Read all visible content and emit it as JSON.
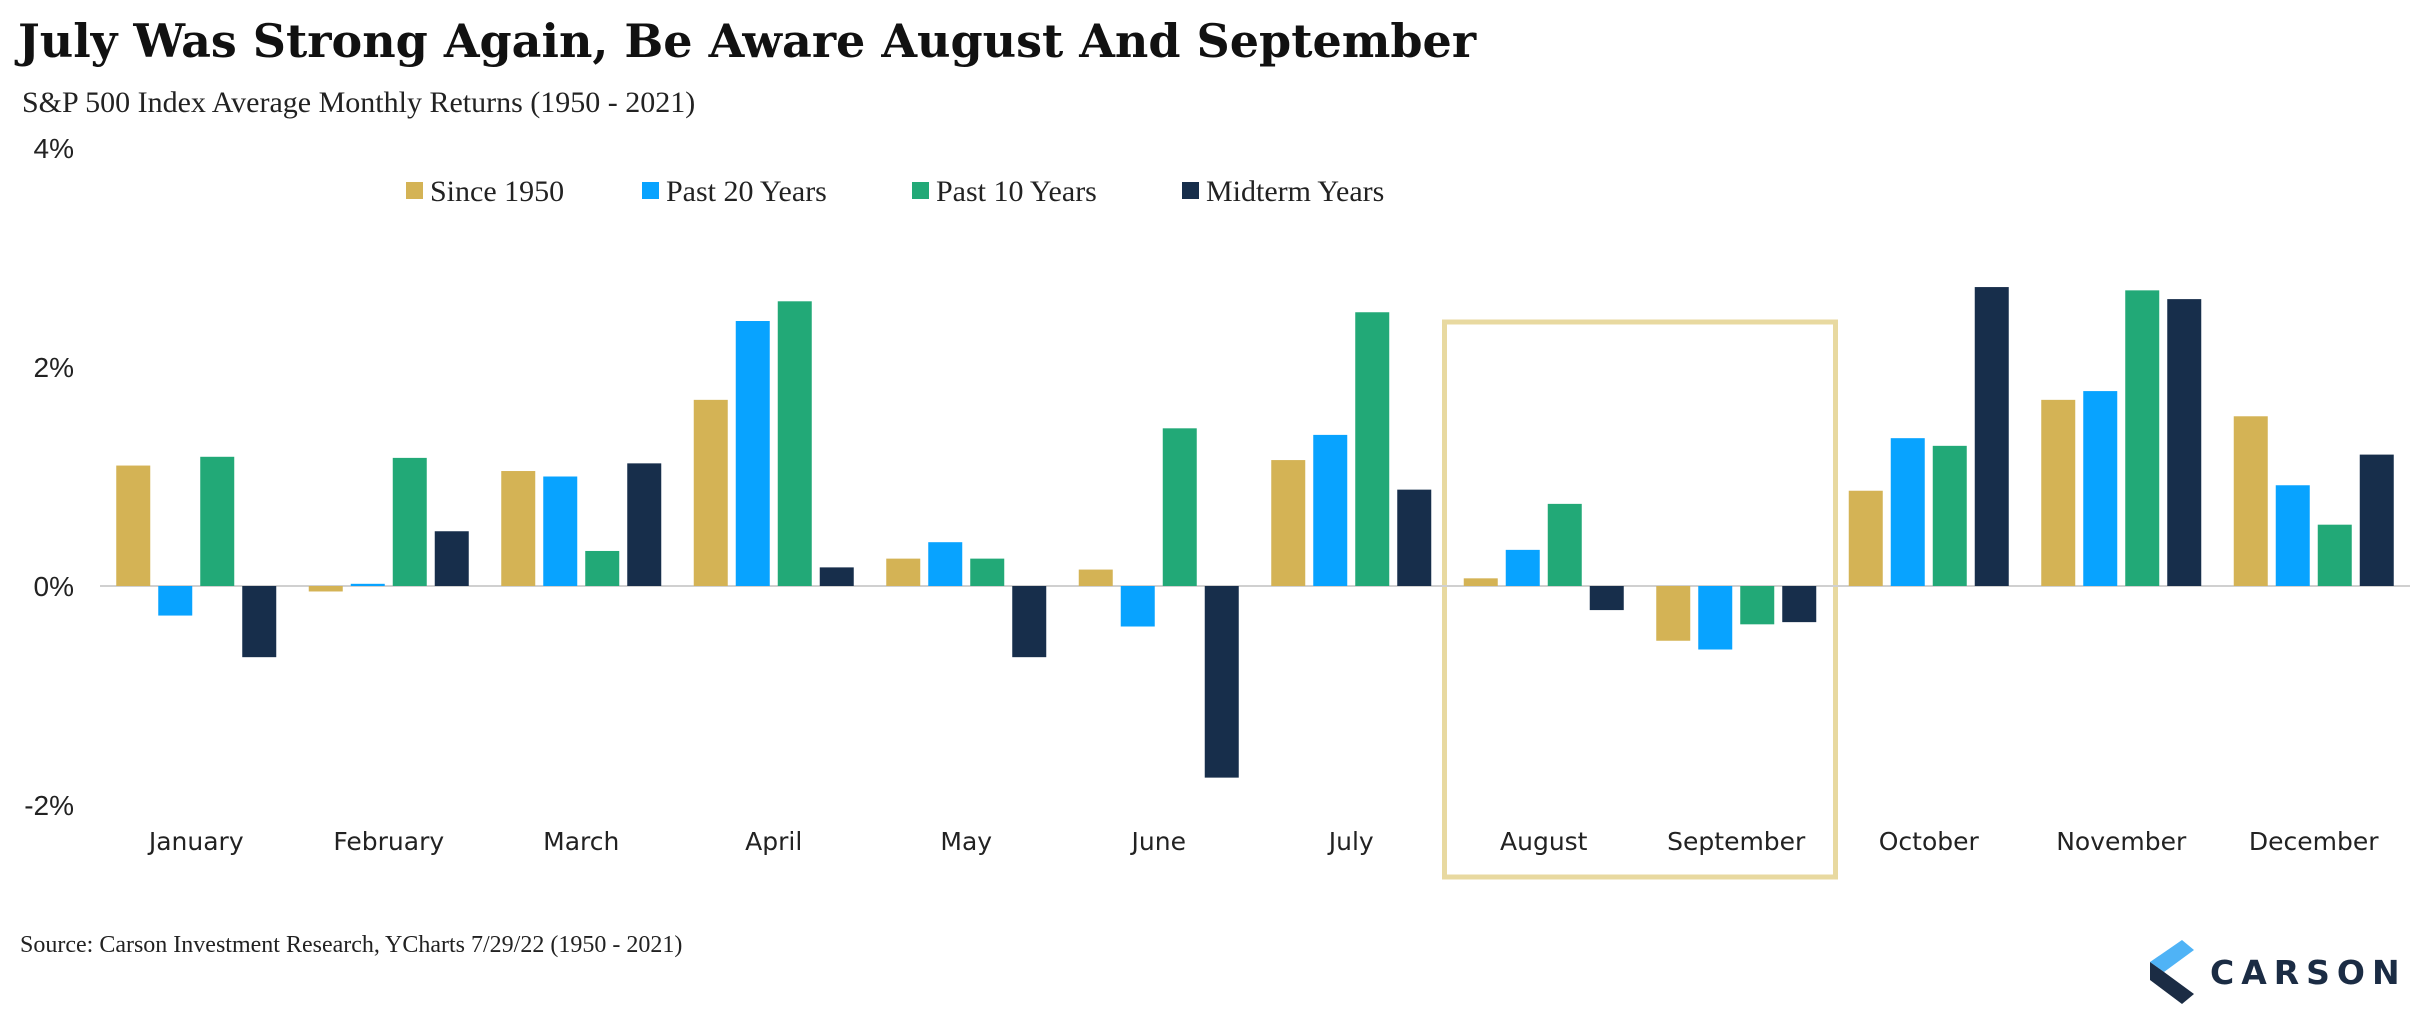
{
  "title": "July Was Strong Again, Be Aware August And September",
  "subtitle": "S&P 500 Index Average Monthly Returns (1950 - 2021)",
  "source": "Source: Carson Investment Research, YCharts 7/29/22 (1950 - 2021)",
  "logo_text": "CARSON",
  "chart_data": {
    "type": "bar",
    "categories": [
      "January",
      "February",
      "March",
      "April",
      "May",
      "June",
      "July",
      "August",
      "September",
      "October",
      "November",
      "December"
    ],
    "yticks": [
      "4%",
      "2%",
      "0%",
      "-2%"
    ],
    "ylim": [
      -2,
      4
    ],
    "grid": false,
    "legend_position": "top",
    "highlight": [
      "August",
      "September"
    ],
    "highlight_color": "#e8d9a0",
    "series": [
      {
        "name": "Since 1950",
        "color": "#d4b355",
        "values": [
          1.1,
          -0.05,
          1.05,
          1.7,
          0.25,
          0.15,
          1.15,
          0.07,
          -0.5,
          0.87,
          1.7,
          1.55
        ]
      },
      {
        "name": "Past 20 Years",
        "color": "#08a3ff",
        "values": [
          -0.27,
          0.02,
          1.0,
          2.42,
          0.4,
          -0.37,
          1.38,
          0.33,
          -0.58,
          1.35,
          1.78,
          0.92
        ]
      },
      {
        "name": "Past 10 Years",
        "color": "#22a977",
        "values": [
          1.18,
          1.17,
          0.32,
          2.6,
          0.25,
          1.44,
          2.5,
          0.75,
          -0.35,
          1.28,
          2.7,
          0.56
        ]
      },
      {
        "name": "Midterm Years",
        "color": "#172e4b",
        "values": [
          -0.65,
          0.5,
          1.12,
          0.17,
          -0.65,
          -1.75,
          0.88,
          -0.22,
          -0.33,
          2.73,
          2.62,
          1.2
        ]
      }
    ]
  }
}
